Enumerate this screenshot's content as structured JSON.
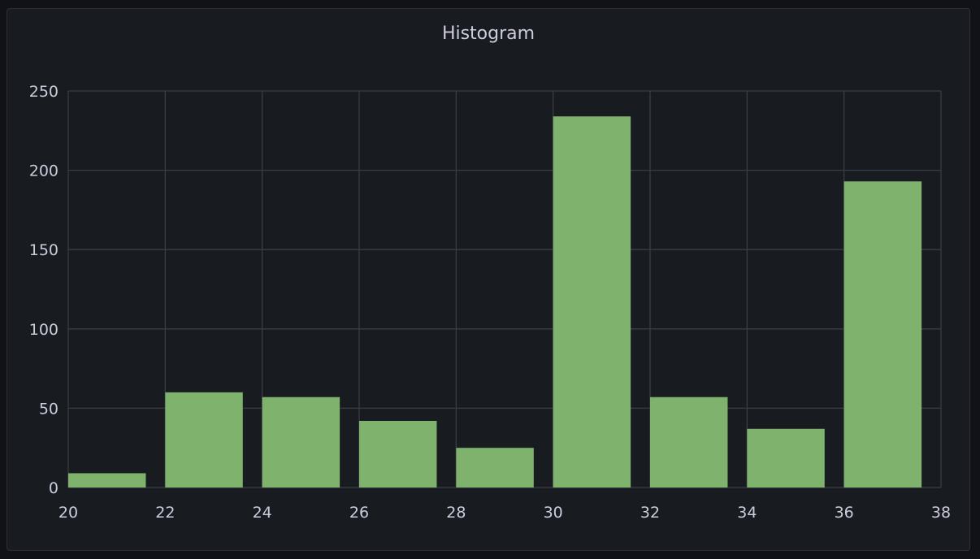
{
  "chart_data": {
    "type": "bar",
    "title": "Histogram",
    "bins": [
      [
        20,
        22
      ],
      [
        22,
        24
      ],
      [
        24,
        26
      ],
      [
        26,
        28
      ],
      [
        28,
        30
      ],
      [
        30,
        32
      ],
      [
        32,
        34
      ],
      [
        34,
        36
      ],
      [
        36,
        38
      ]
    ],
    "values": [
      9,
      60,
      57,
      42,
      25,
      234,
      57,
      37,
      193
    ],
    "xlim": [
      20,
      38
    ],
    "ylim": [
      0,
      250
    ],
    "xticks": [
      20,
      22,
      24,
      26,
      28,
      30,
      32,
      34,
      36,
      38
    ],
    "yticks": [
      0,
      50,
      100,
      150,
      200,
      250
    ],
    "xlabel": "",
    "ylabel": "",
    "grid": true,
    "colors": {
      "bar": "#7eb26d",
      "grid": "#3a3d44",
      "text": "#ccccdc",
      "background": "#181b1f"
    }
  }
}
